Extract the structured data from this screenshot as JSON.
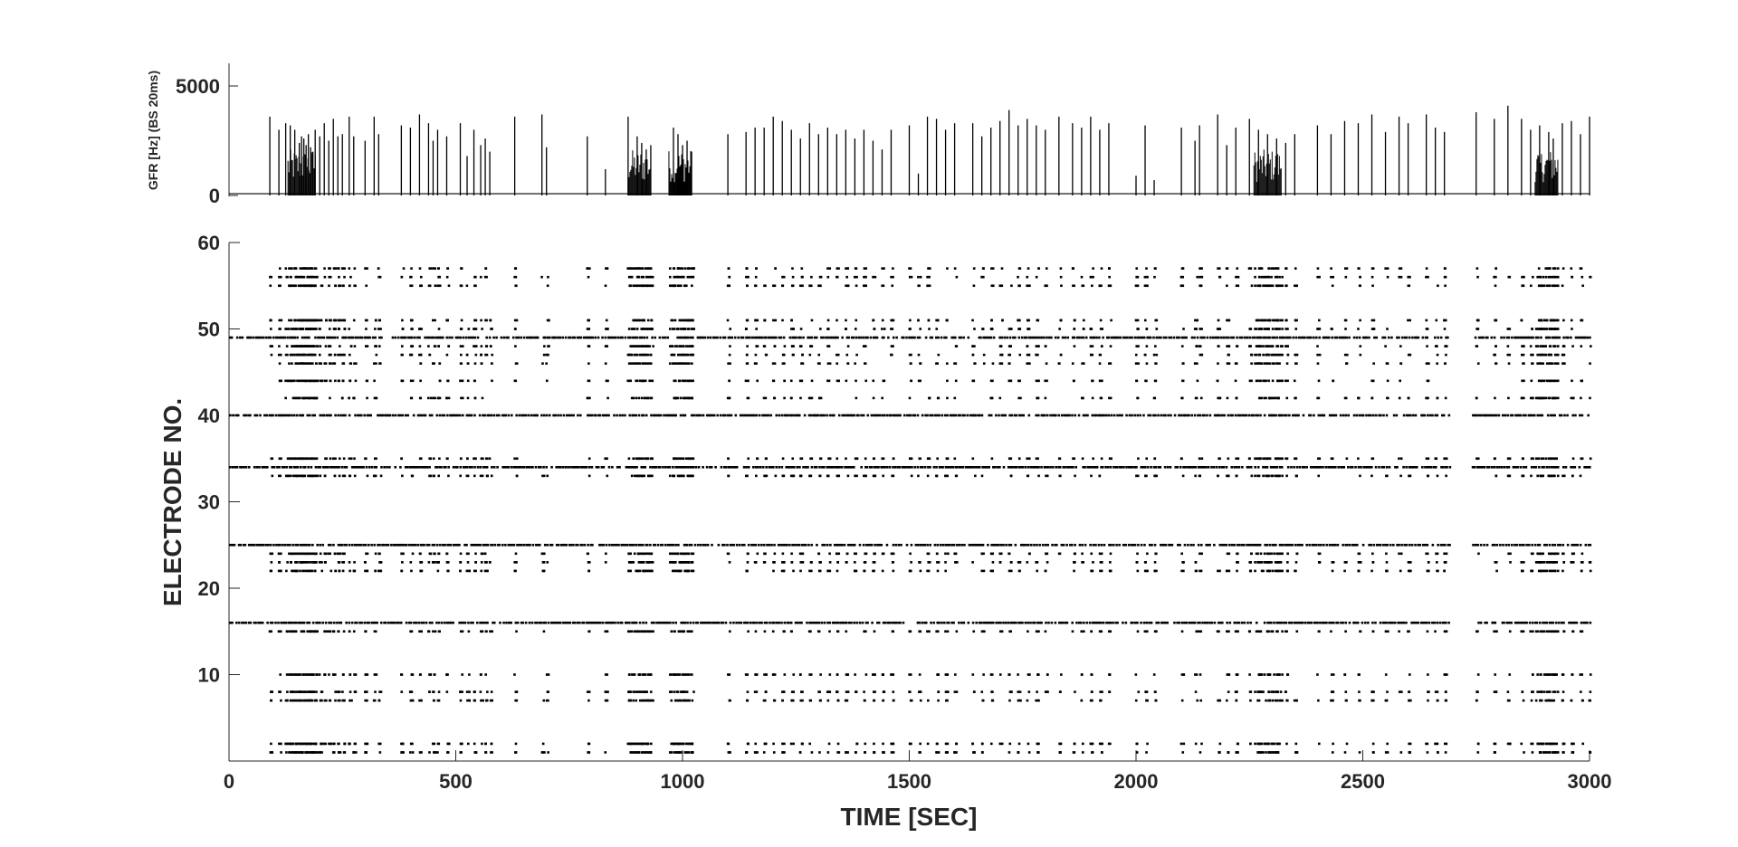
{
  "chart_data": [
    {
      "type": "line",
      "panel": "top",
      "ylabel": "GFR [Hz] (BS 20ms)",
      "xlim": [
        0,
        3000
      ],
      "ylim": [
        0,
        6000
      ],
      "yticks": [
        0,
        5000
      ],
      "xticks_shown": false,
      "baseline": 80,
      "peaks": [
        [
          90,
          3600
        ],
        [
          110,
          3000
        ],
        [
          125,
          3300
        ],
        [
          135,
          3200
        ],
        [
          145,
          3000
        ],
        [
          155,
          2400
        ],
        [
          160,
          2700
        ],
        [
          165,
          2600
        ],
        [
          170,
          2300
        ],
        [
          175,
          2800
        ],
        [
          180,
          2200
        ],
        [
          185,
          2000
        ],
        [
          190,
          3000
        ],
        [
          200,
          2700
        ],
        [
          210,
          3300
        ],
        [
          220,
          2500
        ],
        [
          230,
          3500
        ],
        [
          240,
          2700
        ],
        [
          250,
          2800
        ],
        [
          265,
          3600
        ],
        [
          275,
          2700
        ],
        [
          300,
          2500
        ],
        [
          320,
          3600
        ],
        [
          330,
          2800
        ],
        [
          380,
          3200
        ],
        [
          400,
          3100
        ],
        [
          420,
          3700
        ],
        [
          440,
          3300
        ],
        [
          450,
          2500
        ],
        [
          460,
          3000
        ],
        [
          480,
          2700
        ],
        [
          510,
          3300
        ],
        [
          525,
          1800
        ],
        [
          540,
          3000
        ],
        [
          555,
          2300
        ],
        [
          565,
          2600
        ],
        [
          575,
          2000
        ],
        [
          630,
          3600
        ],
        [
          690,
          3700
        ],
        [
          700,
          2200
        ],
        [
          790,
          2700
        ],
        [
          830,
          1200
        ],
        [
          880,
          3600
        ],
        [
          900,
          2700
        ],
        [
          910,
          2400
        ],
        [
          920,
          2100
        ],
        [
          930,
          2300
        ],
        [
          980,
          3100
        ],
        [
          990,
          2800
        ],
        [
          1000,
          2300
        ],
        [
          1010,
          2500
        ],
        [
          1020,
          2000
        ],
        [
          1100,
          2800
        ],
        [
          1140,
          2900
        ],
        [
          1160,
          3100
        ],
        [
          1180,
          3100
        ],
        [
          1200,
          3600
        ],
        [
          1220,
          3400
        ],
        [
          1240,
          3000
        ],
        [
          1260,
          2600
        ],
        [
          1280,
          3300
        ],
        [
          1300,
          2800
        ],
        [
          1320,
          3100
        ],
        [
          1340,
          2800
        ],
        [
          1360,
          3000
        ],
        [
          1380,
          2600
        ],
        [
          1400,
          3000
        ],
        [
          1420,
          2500
        ],
        [
          1440,
          2100
        ],
        [
          1460,
          3000
        ],
        [
          1500,
          3200
        ],
        [
          1520,
          1000
        ],
        [
          1540,
          3600
        ],
        [
          1560,
          3500
        ],
        [
          1580,
          3000
        ],
        [
          1600,
          3300
        ],
        [
          1640,
          3300
        ],
        [
          1660,
          2700
        ],
        [
          1680,
          3100
        ],
        [
          1700,
          3400
        ],
        [
          1720,
          3900
        ],
        [
          1740,
          3200
        ],
        [
          1760,
          3500
        ],
        [
          1780,
          3200
        ],
        [
          1800,
          3000
        ],
        [
          1830,
          3600
        ],
        [
          1860,
          3300
        ],
        [
          1880,
          3100
        ],
        [
          1900,
          3600
        ],
        [
          1920,
          3000
        ],
        [
          1940,
          3300
        ],
        [
          2000,
          900
        ],
        [
          2020,
          3200
        ],
        [
          2040,
          700
        ],
        [
          2100,
          3100
        ],
        [
          2130,
          2500
        ],
        [
          2140,
          3200
        ],
        [
          2180,
          3700
        ],
        [
          2200,
          2300
        ],
        [
          2220,
          3100
        ],
        [
          2250,
          3500
        ],
        [
          2270,
          3000
        ],
        [
          2290,
          2800
        ],
        [
          2310,
          2600
        ],
        [
          2330,
          2400
        ],
        [
          2350,
          2800
        ],
        [
          2400,
          3200
        ],
        [
          2430,
          2800
        ],
        [
          2460,
          3400
        ],
        [
          2490,
          3300
        ],
        [
          2520,
          3700
        ],
        [
          2550,
          2900
        ],
        [
          2580,
          3600
        ],
        [
          2600,
          3300
        ],
        [
          2640,
          3700
        ],
        [
          2660,
          3100
        ],
        [
          2680,
          2900
        ],
        [
          2750,
          3800
        ],
        [
          2790,
          3500
        ],
        [
          2820,
          4100
        ],
        [
          2850,
          3500
        ],
        [
          2870,
          3000
        ],
        [
          2890,
          3200
        ],
        [
          2910,
          2900
        ],
        [
          2920,
          2600
        ],
        [
          2940,
          3300
        ],
        [
          2960,
          3400
        ],
        [
          2980,
          2800
        ],
        [
          3000,
          3600
        ]
      ],
      "dense_clusters": [
        [
          130,
          190
        ],
        [
          880,
          930
        ],
        [
          970,
          1020
        ],
        [
          2260,
          2320
        ],
        [
          2880,
          2930
        ]
      ]
    },
    {
      "type": "scatter",
      "panel": "bottom",
      "xlabel": "TIME [SEC]",
      "ylabel": "ELECTRODE NO.",
      "xlim": [
        0,
        3000
      ],
      "ylim": [
        0,
        60
      ],
      "xticks": [
        0,
        500,
        1000,
        1500,
        2000,
        2500,
        3000
      ],
      "yticks": [
        10,
        20,
        30,
        40,
        50,
        60
      ],
      "marker": "dot",
      "color": "#000000",
      "continuous_channels": [
        16,
        25,
        34,
        40,
        49
      ],
      "burst_channels": [
        1,
        2,
        7,
        8,
        10,
        15,
        22,
        23,
        24,
        33,
        35,
        42,
        44,
        46,
        47,
        48,
        50,
        51,
        55,
        56,
        57
      ],
      "burst_times": [
        90,
        110,
        125,
        135,
        145,
        155,
        160,
        165,
        170,
        175,
        180,
        185,
        190,
        200,
        210,
        220,
        230,
        240,
        250,
        265,
        275,
        300,
        320,
        330,
        380,
        400,
        420,
        440,
        450,
        460,
        480,
        510,
        525,
        540,
        555,
        565,
        575,
        630,
        690,
        700,
        790,
        830,
        880,
        900,
        910,
        920,
        930,
        980,
        990,
        1000,
        1010,
        1020,
        1100,
        1140,
        1160,
        1180,
        1200,
        1220,
        1240,
        1260,
        1280,
        1300,
        1320,
        1340,
        1360,
        1380,
        1400,
        1420,
        1440,
        1460,
        1500,
        1520,
        1540,
        1560,
        1580,
        1600,
        1640,
        1660,
        1680,
        1700,
        1720,
        1740,
        1760,
        1780,
        1800,
        1830,
        1860,
        1880,
        1900,
        1920,
        1940,
        2000,
        2020,
        2040,
        2100,
        2130,
        2140,
        2180,
        2200,
        2220,
        2250,
        2270,
        2290,
        2310,
        2330,
        2350,
        2400,
        2430,
        2460,
        2490,
        2520,
        2550,
        2580,
        2600,
        2640,
        2660,
        2680,
        2750,
        2790,
        2820,
        2850,
        2870,
        2890,
        2910,
        2920,
        2940,
        2960,
        2980,
        3000
      ],
      "quiet_gaps": [
        [
          2690,
          2740
        ]
      ]
    }
  ]
}
